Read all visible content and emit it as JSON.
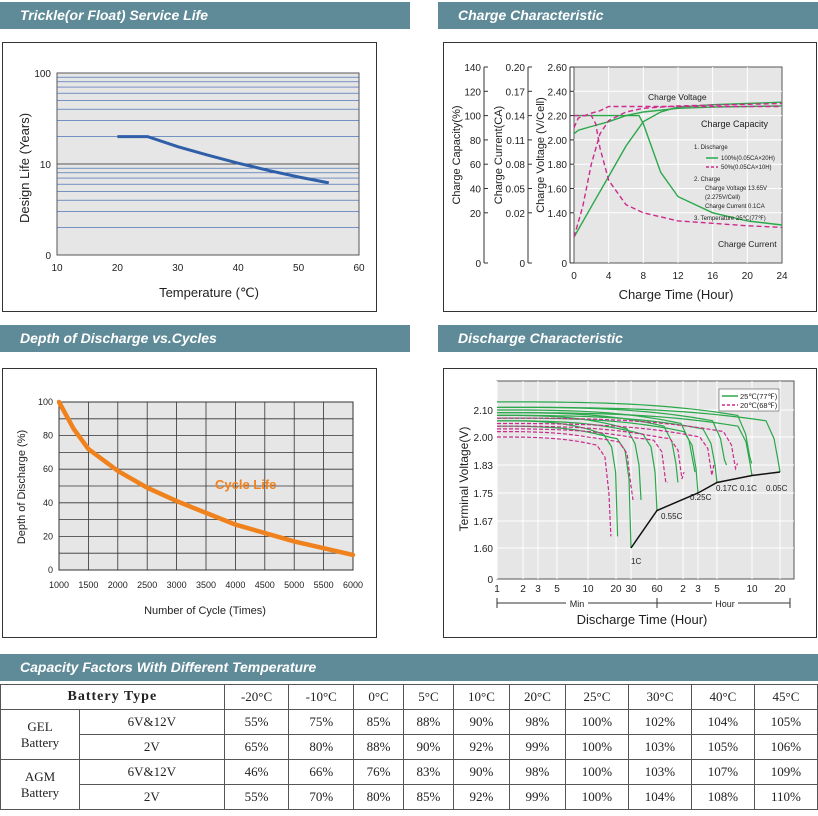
{
  "headers": {
    "trickle": "Trickle(or Float) Service Life",
    "charge": "Charge Characteristic",
    "dod": "Depth of Discharge vs.Cycles",
    "discharge": "Discharge Characteristic",
    "capacity": "Capacity Factors With Different Temperature"
  },
  "colors": {
    "header_bg": "#5f8a98",
    "plot_bg": "#e6e6e6",
    "life_line": "#2f5fa8",
    "cycle_line": "#f0821e",
    "green": "#2aa84a",
    "magenta": "#cc2a8c"
  },
  "chart_data": [
    {
      "type": "line",
      "ylabel": "Design Life (Years)",
      "xlabel": "Temperature (℃)",
      "x_ticks": [
        "10",
        "20",
        "30",
        "40",
        "50",
        "60"
      ],
      "y_ticks": [
        "0",
        "10",
        "100"
      ],
      "xlim": [
        10,
        60
      ],
      "y_scale": "log",
      "grid": true,
      "series": [
        {
          "x": [
            20,
            25,
            30,
            35,
            40,
            45,
            50,
            55
          ],
          "y": [
            20,
            20,
            15.5,
            12.5,
            10.2,
            8.5,
            7.2,
            6.2
          ]
        }
      ]
    },
    {
      "type": "line",
      "xlabel": "Charge Time (Hour)",
      "ylabels": [
        "Charge Capacity(%)",
        "Charge Current(CA)",
        "Charge Voltage (V/Cell)"
      ],
      "cap_ticks": [
        "140",
        "120",
        "100",
        "80",
        "60",
        "40",
        "20",
        "0"
      ],
      "cur_ticks": [
        "0.20",
        "0.17",
        "0.14",
        "0.11",
        "0.08",
        "0.05",
        "0.02",
        "0"
      ],
      "volt_ticks": [
        "2.60",
        "2.40",
        "2.20",
        "2.00",
        "1.80",
        "1.60",
        "1.40",
        "0"
      ],
      "x_ticks": [
        "0",
        "4",
        "8",
        "12",
        "16",
        "20",
        "24"
      ],
      "annotations": [
        "Charge Voltage",
        "Charge Capacity",
        "Charge Current"
      ],
      "legend": {
        "discharge_title": "1. Discharge",
        "discharge_items": [
          "100%(0.05CA×20H)",
          "50%(0.05CA×10H)"
        ],
        "charge_title": "2. Charge",
        "charge_lines": [
          "Charge Voltage 13.65V",
          "(2.275V/Cell)",
          "Charge Current 0.1CA"
        ],
        "temperature": "3. Temperature 25℃(77℉)"
      },
      "series": [
        {
          "name": "100%(0.05CA×20H)",
          "color": "green",
          "voltage": {
            "x": [
              0,
              0.5,
              2,
              4,
              6,
              8,
              12,
              16,
              20,
              24
            ],
            "y": [
              2.05,
              2.08,
              2.11,
              2.15,
              2.2,
              2.23,
              2.26,
              2.27,
              2.275,
              2.28
            ]
          },
          "current": {
            "x": [
              0,
              7.5,
              8,
              10,
              12,
              16,
              20,
              24
            ],
            "y": [
              0.14,
              0.14,
              0.13,
              0.07,
              0.04,
              0.02,
              0.01,
              0.005
            ]
          },
          "capacity": {
            "x": [
              0,
              2,
              4,
              6,
              8,
              10,
              12,
              16,
              20,
              24
            ],
            "y": [
              0,
              25,
              50,
              75,
              95,
              103,
              107,
              109,
              110,
              111
            ]
          }
        },
        {
          "name": "50%(0.05CA×10H)",
          "color": "magenta",
          "voltage": {
            "x": [
              0,
              0.5,
              2,
              3,
              4,
              6,
              8,
              24
            ],
            "y": [
              2.1,
              2.18,
              2.22,
              2.24,
              2.275,
              2.275,
              2.275,
              2.275
            ]
          },
          "current": {
            "x": [
              0,
              2,
              2.5,
              3,
              4,
              6,
              8,
              12,
              16,
              20,
              24
            ],
            "y": [
              0.14,
              0.14,
              0.13,
              0.1,
              0.06,
              0.03,
              0.02,
              0.01,
              0.007,
              0.004,
              0.002
            ]
          },
          "capacity": {
            "x": [
              0,
              1,
              2,
              3,
              4,
              6,
              8,
              12,
              24
            ],
            "y": [
              0,
              25,
              60,
              85,
              96,
              103,
              106,
              108,
              110
            ]
          }
        }
      ]
    },
    {
      "type": "line",
      "title": "Cycle Life",
      "ylabel": "Depth of Discharge (%)",
      "xlabel": "Number of Cycle (Times)",
      "x_ticks": [
        "1000",
        "1500",
        "2000",
        "2500",
        "3000",
        "3500",
        "4000",
        "4500",
        "5000",
        "5500",
        "6000"
      ],
      "y_ticks": [
        "0",
        "20",
        "40",
        "60",
        "80",
        "100"
      ],
      "xlim": [
        1000,
        6000
      ],
      "ylim": [
        0,
        100
      ],
      "grid": true,
      "series": [
        {
          "x": [
            1000,
            1250,
            1500,
            2000,
            2500,
            3000,
            3500,
            4000,
            4500,
            5000,
            5500,
            6000
          ],
          "y": [
            100,
            84,
            72,
            59,
            49,
            41,
            34,
            27,
            22,
            17,
            13,
            9
          ]
        }
      ]
    },
    {
      "type": "line",
      "ylabel": "Terminal Voltage(V)",
      "xlabel": "Discharge Time (Hour)",
      "y_ticks": [
        "2.10",
        "2.00",
        "1.83",
        "1.75",
        "1.67",
        "1.60",
        "0"
      ],
      "x_ticks": [
        "1",
        "2",
        "3",
        "5",
        "10",
        "20",
        "30",
        "60",
        "2",
        "3",
        "5",
        "10",
        "20"
      ],
      "min_label": "Min",
      "hour_label": "Hour",
      "legend": [
        {
          "name": "25℃(77℉)",
          "color": "green"
        },
        {
          "name": "20℃(68℉)",
          "color": "magenta"
        }
      ],
      "rate_labels": [
        "1C",
        "0.55C",
        "0.25C",
        "0.17C",
        "0.1C",
        "0.05C"
      ],
      "series": [
        {
          "rate": "1C",
          "end_time_min": 30,
          "start_v": 2.04,
          "end_v": 1.6
        },
        {
          "rate": "0.55C",
          "end_time_min": 60,
          "start_v": 2.06,
          "end_v": 1.7
        },
        {
          "rate": "0.25C",
          "end_time_min": 180,
          "start_v": 2.07,
          "end_v": 1.75
        },
        {
          "rate": "0.17C",
          "end_time_min": 300,
          "start_v": 2.08,
          "end_v": 1.78
        },
        {
          "rate": "0.1C",
          "end_time_min": 600,
          "start_v": 2.09,
          "end_v": 1.8
        },
        {
          "rate": "0.05C",
          "end_time_min": 1200,
          "start_v": 2.11,
          "end_v": 1.81
        }
      ],
      "final_voltage_curve": {
        "time_min": [
          30,
          60,
          180,
          300,
          600,
          1200
        ],
        "v": [
          1.6,
          1.7,
          1.75,
          1.78,
          1.8,
          1.81
        ]
      }
    },
    {
      "type": "table",
      "header": [
        "Battery Type",
        "-20°C",
        "-10°C",
        "0°C",
        "5°C",
        "10°C",
        "20°C",
        "25°C",
        "30°C",
        "40°C",
        "45°C"
      ],
      "groups": [
        {
          "name_lines": [
            "GEL",
            "Battery"
          ],
          "rows": [
            {
              "label": "6V&12V",
              "values": [
                "55%",
                "75%",
                "85%",
                "88%",
                "90%",
                "98%",
                "100%",
                "102%",
                "104%",
                "105%"
              ]
            },
            {
              "label": "2V",
              "values": [
                "65%",
                "80%",
                "88%",
                "90%",
                "92%",
                "99%",
                "100%",
                "103%",
                "105%",
                "106%"
              ]
            }
          ]
        },
        {
          "name_lines": [
            "AGM",
            "Battery"
          ],
          "rows": [
            {
              "label": "6V&12V",
              "values": [
                "46%",
                "66%",
                "76%",
                "83%",
                "90%",
                "98%",
                "100%",
                "103%",
                "107%",
                "109%"
              ]
            },
            {
              "label": "2V",
              "values": [
                "55%",
                "70%",
                "80%",
                "85%",
                "92%",
                "99%",
                "100%",
                "104%",
                "108%",
                "110%"
              ]
            }
          ]
        }
      ]
    }
  ]
}
